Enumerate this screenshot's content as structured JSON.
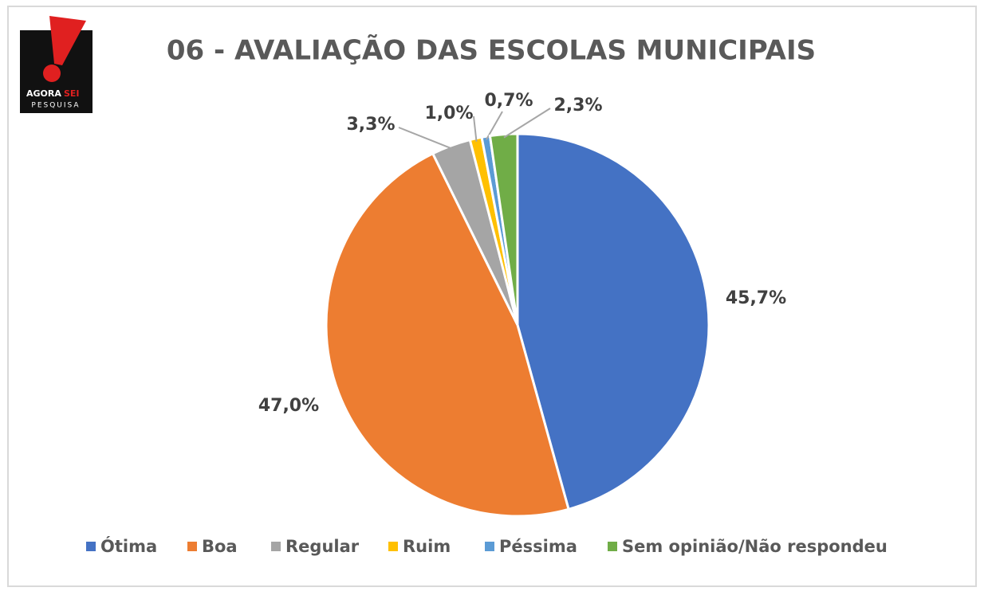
{
  "logo": {
    "word1": "AGORA",
    "word2": "SEI",
    "word3": "PESQUISA"
  },
  "chart_data": {
    "type": "pie",
    "title": "06 - AVALIAÇÃO DAS ESCOLAS MUNICIPAIS",
    "categories": [
      "Ótima",
      "Boa",
      "Regular",
      "Ruim",
      "Péssima",
      "Sem opinião/Não respondeu"
    ],
    "values": [
      45.7,
      47.0,
      3.3,
      1.0,
      0.7,
      2.3
    ],
    "value_labels": [
      "45,7%",
      "47,0%",
      "3,3%",
      "1,0%",
      "0,7%",
      "2,3%"
    ],
    "colors": [
      "#4472c4",
      "#ed7d31",
      "#a5a5a5",
      "#ffc000",
      "#5b9bd5",
      "#70ad47"
    ],
    "legend": "bottom"
  }
}
